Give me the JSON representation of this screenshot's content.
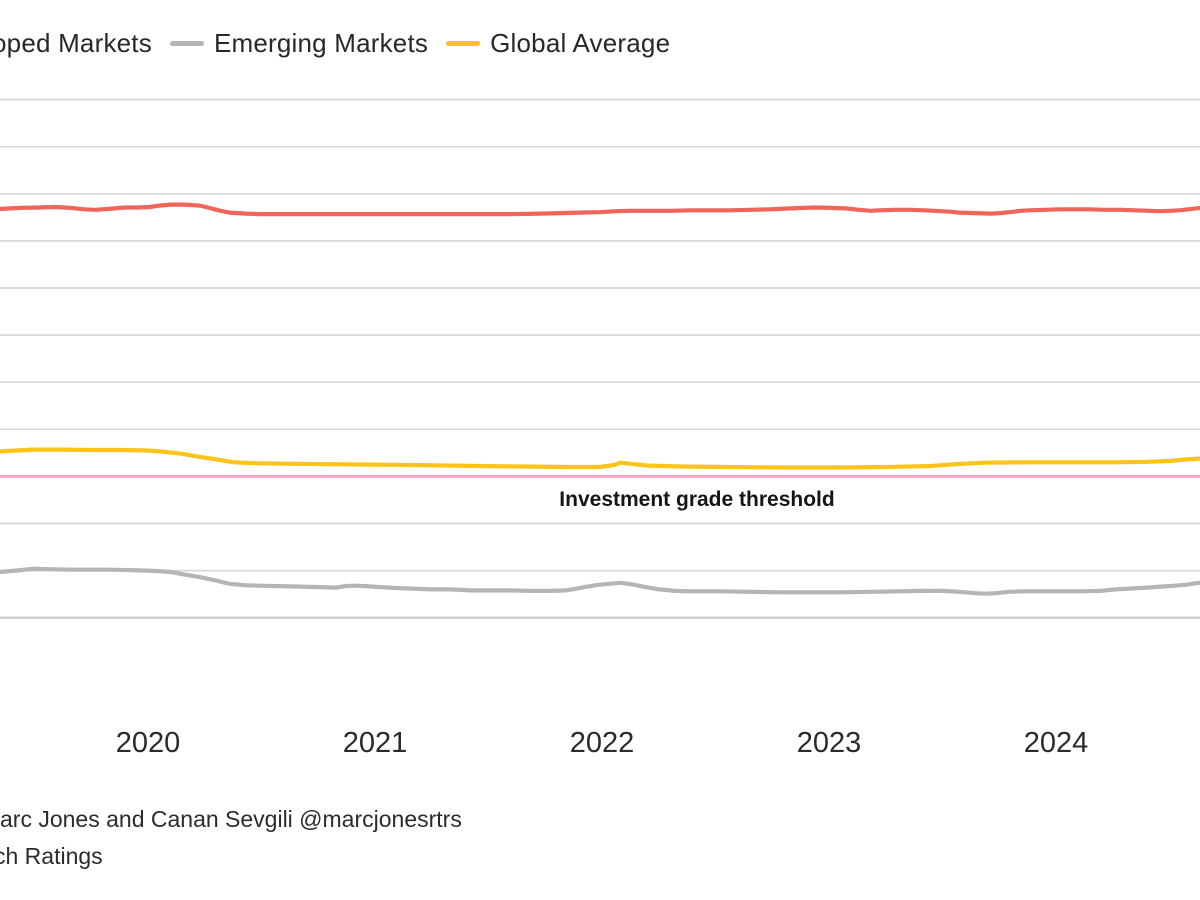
{
  "legend": {
    "items": [
      {
        "label": "oped Markets",
        "clipped": true,
        "series_index": 0,
        "dash_visible": false
      },
      {
        "label": "Emerging Markets",
        "clipped": false,
        "series_index": 1,
        "dash_visible": true
      },
      {
        "label": "Global Average",
        "clipped": false,
        "series_index": 2,
        "dash_visible": true
      }
    ]
  },
  "annotation": {
    "threshold_label": "Investment grade threshold"
  },
  "footer": {
    "line1": "arc Jones and Canan Sevgili @marcjonesrtrs",
    "line2": "ch Ratings"
  },
  "colors": {
    "developed": "#f0655a",
    "emerging": "#b5b5b5",
    "global": "#fcc41b",
    "threshold_line": "#f5a3c3",
    "gridline": "#d8d8d8",
    "axisline": "#cdcdcd",
    "text": "#2b2b2b"
  },
  "chart_data": {
    "type": "line",
    "title": "",
    "xlabel": "",
    "ylabel": "",
    "x_ticks": [
      "2020",
      "2021",
      "2022",
      "2023",
      "2024"
    ],
    "xlim": [
      2019.35,
      2024.63
    ],
    "ylim": [
      -3,
      8
    ],
    "grid": true,
    "legend_position": "top",
    "y_axis_note": "Y-axis tick labels are cropped out of frame; values are rating notches relative to the investment-grade threshold (threshold = 0, one gridline per notch)",
    "threshold": {
      "value": 0,
      "label": "Investment grade threshold"
    },
    "series": [
      {
        "name": "Developed Markets",
        "color": "#f0655a",
        "points": [
          [
            2019.35,
            5.68
          ],
          [
            2019.44,
            5.7
          ],
          [
            2019.52,
            5.71
          ],
          [
            2019.59,
            5.72
          ],
          [
            2019.66,
            5.7
          ],
          [
            2019.72,
            5.67
          ],
          [
            2019.77,
            5.66
          ],
          [
            2019.83,
            5.68
          ],
          [
            2019.9,
            5.71
          ],
          [
            2019.96,
            5.71
          ],
          [
            2020.01,
            5.72
          ],
          [
            2020.05,
            5.75
          ],
          [
            2020.1,
            5.77
          ],
          [
            2020.16,
            5.77
          ],
          [
            2020.23,
            5.75
          ],
          [
            2020.27,
            5.7
          ],
          [
            2020.32,
            5.64
          ],
          [
            2020.36,
            5.6
          ],
          [
            2020.43,
            5.58
          ],
          [
            2020.49,
            5.57
          ],
          [
            2020.58,
            5.57
          ],
          [
            2020.8,
            5.57
          ],
          [
            2021.07,
            5.57
          ],
          [
            2021.33,
            5.57
          ],
          [
            2021.6,
            5.57
          ],
          [
            2021.73,
            5.58
          ],
          [
            2021.82,
            5.59
          ],
          [
            2021.9,
            5.6
          ],
          [
            2021.99,
            5.61
          ],
          [
            2022.06,
            5.63
          ],
          [
            2022.12,
            5.64
          ],
          [
            2022.21,
            5.64
          ],
          [
            2022.3,
            5.64
          ],
          [
            2022.39,
            5.65
          ],
          [
            2022.48,
            5.65
          ],
          [
            2022.56,
            5.65
          ],
          [
            2022.65,
            5.66
          ],
          [
            2022.74,
            5.67
          ],
          [
            2022.83,
            5.69
          ],
          [
            2022.89,
            5.7
          ],
          [
            2022.94,
            5.71
          ],
          [
            2023.0,
            5.7
          ],
          [
            2023.07,
            5.69
          ],
          [
            2023.13,
            5.66
          ],
          [
            2023.18,
            5.64
          ],
          [
            2023.22,
            5.65
          ],
          [
            2023.29,
            5.66
          ],
          [
            2023.35,
            5.66
          ],
          [
            2023.42,
            5.65
          ],
          [
            2023.49,
            5.63
          ],
          [
            2023.53,
            5.62
          ],
          [
            2023.57,
            5.6
          ],
          [
            2023.64,
            5.59
          ],
          [
            2023.71,
            5.58
          ],
          [
            2023.75,
            5.59
          ],
          [
            2023.79,
            5.61
          ],
          [
            2023.84,
            5.64
          ],
          [
            2023.88,
            5.65
          ],
          [
            2023.95,
            5.66
          ],
          [
            2024.01,
            5.67
          ],
          [
            2024.08,
            5.67
          ],
          [
            2024.14,
            5.67
          ],
          [
            2024.21,
            5.66
          ],
          [
            2024.28,
            5.66
          ],
          [
            2024.34,
            5.65
          ],
          [
            2024.41,
            5.64
          ],
          [
            2024.45,
            5.63
          ],
          [
            2024.5,
            5.64
          ],
          [
            2024.54,
            5.65
          ],
          [
            2024.58,
            5.67
          ],
          [
            2024.63,
            5.7
          ]
        ]
      },
      {
        "name": "Emerging Markets",
        "color": "#b5b5b5",
        "points": [
          [
            2019.35,
            -2.03
          ],
          [
            2019.44,
            -1.99
          ],
          [
            2019.5,
            -1.96
          ],
          [
            2019.57,
            -1.97
          ],
          [
            2019.66,
            -1.98
          ],
          [
            2019.75,
            -1.98
          ],
          [
            2019.83,
            -1.98
          ],
          [
            2019.92,
            -1.99
          ],
          [
            2020.0,
            -2.0
          ],
          [
            2020.05,
            -2.01
          ],
          [
            2020.1,
            -2.03
          ],
          [
            2020.16,
            -2.08
          ],
          [
            2020.23,
            -2.14
          ],
          [
            2020.3,
            -2.21
          ],
          [
            2020.36,
            -2.28
          ],
          [
            2020.43,
            -2.31
          ],
          [
            2020.49,
            -2.32
          ],
          [
            2020.58,
            -2.33
          ],
          [
            2020.67,
            -2.34
          ],
          [
            2020.76,
            -2.35
          ],
          [
            2020.83,
            -2.36
          ],
          [
            2020.87,
            -2.33
          ],
          [
            2020.91,
            -2.32
          ],
          [
            2020.96,
            -2.33
          ],
          [
            2021.02,
            -2.35
          ],
          [
            2021.09,
            -2.37
          ],
          [
            2021.15,
            -2.38
          ],
          [
            2021.24,
            -2.4
          ],
          [
            2021.33,
            -2.4
          ],
          [
            2021.42,
            -2.42
          ],
          [
            2021.51,
            -2.42
          ],
          [
            2021.6,
            -2.42
          ],
          [
            2021.68,
            -2.43
          ],
          [
            2021.77,
            -2.43
          ],
          [
            2021.84,
            -2.42
          ],
          [
            2021.9,
            -2.37
          ],
          [
            2021.97,
            -2.31
          ],
          [
            2022.03,
            -2.28
          ],
          [
            2022.08,
            -2.26
          ],
          [
            2022.13,
            -2.29
          ],
          [
            2022.19,
            -2.35
          ],
          [
            2022.25,
            -2.4
          ],
          [
            2022.32,
            -2.43
          ],
          [
            2022.39,
            -2.44
          ],
          [
            2022.52,
            -2.44
          ],
          [
            2022.65,
            -2.45
          ],
          [
            2022.78,
            -2.46
          ],
          [
            2022.92,
            -2.46
          ],
          [
            2023.05,
            -2.46
          ],
          [
            2023.18,
            -2.45
          ],
          [
            2023.31,
            -2.44
          ],
          [
            2023.41,
            -2.43
          ],
          [
            2023.5,
            -2.43
          ],
          [
            2023.57,
            -2.45
          ],
          [
            2023.64,
            -2.48
          ],
          [
            2023.69,
            -2.49
          ],
          [
            2023.73,
            -2.48
          ],
          [
            2023.79,
            -2.45
          ],
          [
            2023.86,
            -2.44
          ],
          [
            2023.93,
            -2.44
          ],
          [
            2024.01,
            -2.44
          ],
          [
            2024.1,
            -2.44
          ],
          [
            2024.19,
            -2.43
          ],
          [
            2024.26,
            -2.4
          ],
          [
            2024.33,
            -2.38
          ],
          [
            2024.4,
            -2.36
          ],
          [
            2024.46,
            -2.34
          ],
          [
            2024.52,
            -2.32
          ],
          [
            2024.57,
            -2.3
          ],
          [
            2024.61,
            -2.27
          ],
          [
            2024.63,
            -2.26
          ]
        ]
      },
      {
        "name": "Global Average",
        "color": "#fcc41b",
        "points": [
          [
            2019.35,
            0.53
          ],
          [
            2019.42,
            0.55
          ],
          [
            2019.5,
            0.57
          ],
          [
            2019.62,
            0.57
          ],
          [
            2019.75,
            0.56
          ],
          [
            2019.9,
            0.56
          ],
          [
            2020.0,
            0.55
          ],
          [
            2020.08,
            0.52
          ],
          [
            2020.15,
            0.48
          ],
          [
            2020.22,
            0.42
          ],
          [
            2020.29,
            0.37
          ],
          [
            2020.38,
            0.3
          ],
          [
            2020.47,
            0.28
          ],
          [
            2020.6,
            0.27
          ],
          [
            2020.8,
            0.26
          ],
          [
            2021.0,
            0.25
          ],
          [
            2021.2,
            0.24
          ],
          [
            2021.45,
            0.22
          ],
          [
            2021.65,
            0.21
          ],
          [
            2021.85,
            0.2
          ],
          [
            2021.99,
            0.2
          ],
          [
            2022.05,
            0.24
          ],
          [
            2022.08,
            0.29
          ],
          [
            2022.12,
            0.27
          ],
          [
            2022.2,
            0.23
          ],
          [
            2022.35,
            0.21
          ],
          [
            2022.55,
            0.2
          ],
          [
            2022.8,
            0.19
          ],
          [
            2023.05,
            0.19
          ],
          [
            2023.25,
            0.2
          ],
          [
            2023.45,
            0.22
          ],
          [
            2023.55,
            0.26
          ],
          [
            2023.68,
            0.29
          ],
          [
            2023.85,
            0.3
          ],
          [
            2024.05,
            0.3
          ],
          [
            2024.25,
            0.3
          ],
          [
            2024.4,
            0.31
          ],
          [
            2024.5,
            0.33
          ],
          [
            2024.57,
            0.36
          ],
          [
            2024.63,
            0.38
          ]
        ]
      }
    ]
  }
}
